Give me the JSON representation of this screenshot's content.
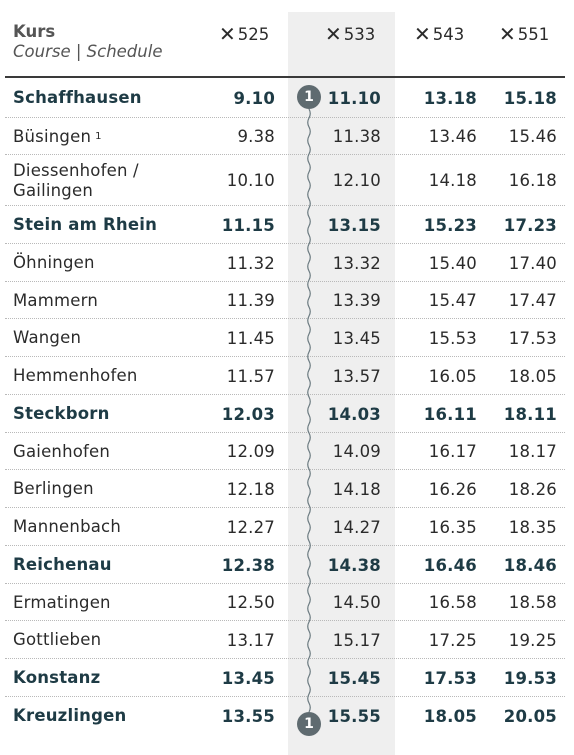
{
  "header": {
    "title": "Kurs",
    "subtitle": "Course | Schedule",
    "courses": [
      {
        "icon": "fork-knife-icon",
        "number": "525"
      },
      {
        "icon": "fork-knife-icon",
        "number": "533"
      },
      {
        "icon": "fork-knife-icon",
        "number": "543"
      },
      {
        "icon": "fork-knife-icon",
        "number": "551"
      }
    ]
  },
  "highlighted_course": "533",
  "note_marker": "1",
  "rows": [
    {
      "stop": "Schaffhausen",
      "sup": "",
      "major": true,
      "times": [
        "9.10",
        "11.10",
        "13.18",
        "15.18"
      ]
    },
    {
      "stop": "Büsingen",
      "sup": "1",
      "major": false,
      "times": [
        "9.38",
        "11.38",
        "13.46",
        "15.46"
      ]
    },
    {
      "stop": "Diessenhofen / Gailingen",
      "sup": "",
      "major": false,
      "times": [
        "10.10",
        "12.10",
        "14.18",
        "16.18"
      ]
    },
    {
      "stop": "Stein am Rhein",
      "sup": "",
      "major": true,
      "times": [
        "11.15",
        "13.15",
        "15.23",
        "17.23"
      ]
    },
    {
      "stop": "Öhningen",
      "sup": "",
      "major": false,
      "times": [
        "11.32",
        "13.32",
        "15.40",
        "17.40"
      ]
    },
    {
      "stop": "Mammern",
      "sup": "",
      "major": false,
      "times": [
        "11.39",
        "13.39",
        "15.47",
        "17.47"
      ]
    },
    {
      "stop": "Wangen",
      "sup": "",
      "major": false,
      "times": [
        "11.45",
        "13.45",
        "15.53",
        "17.53"
      ]
    },
    {
      "stop": "Hemmenhofen",
      "sup": "",
      "major": false,
      "times": [
        "11.57",
        "13.57",
        "16.05",
        "18.05"
      ]
    },
    {
      "stop": "Steckborn",
      "sup": "",
      "major": true,
      "times": [
        "12.03",
        "14.03",
        "16.11",
        "18.11"
      ]
    },
    {
      "stop": "Gaienhofen",
      "sup": "",
      "major": false,
      "times": [
        "12.09",
        "14.09",
        "16.17",
        "18.17"
      ]
    },
    {
      "stop": "Berlingen",
      "sup": "",
      "major": false,
      "times": [
        "12.18",
        "14.18",
        "16.26",
        "18.26"
      ]
    },
    {
      "stop": "Mannenbach",
      "sup": "",
      "major": false,
      "times": [
        "12.27",
        "14.27",
        "16.35",
        "18.35"
      ]
    },
    {
      "stop": "Reichenau",
      "sup": "",
      "major": true,
      "times": [
        "12.38",
        "14.38",
        "16.46",
        "18.46"
      ]
    },
    {
      "stop": "Ermatingen",
      "sup": "",
      "major": false,
      "times": [
        "12.50",
        "14.50",
        "16.58",
        "18.58"
      ]
    },
    {
      "stop": "Gottlieben",
      "sup": "",
      "major": false,
      "times": [
        "13.17",
        "15.17",
        "17.25",
        "19.25"
      ]
    },
    {
      "stop": "Konstanz",
      "sup": "",
      "major": true,
      "times": [
        "13.45",
        "15.45",
        "17.53",
        "19.53"
      ]
    },
    {
      "stop": "Kreuzlingen",
      "sup": "",
      "major": true,
      "times": [
        "13.55",
        "15.55",
        "18.05",
        "20.05"
      ]
    }
  ]
}
